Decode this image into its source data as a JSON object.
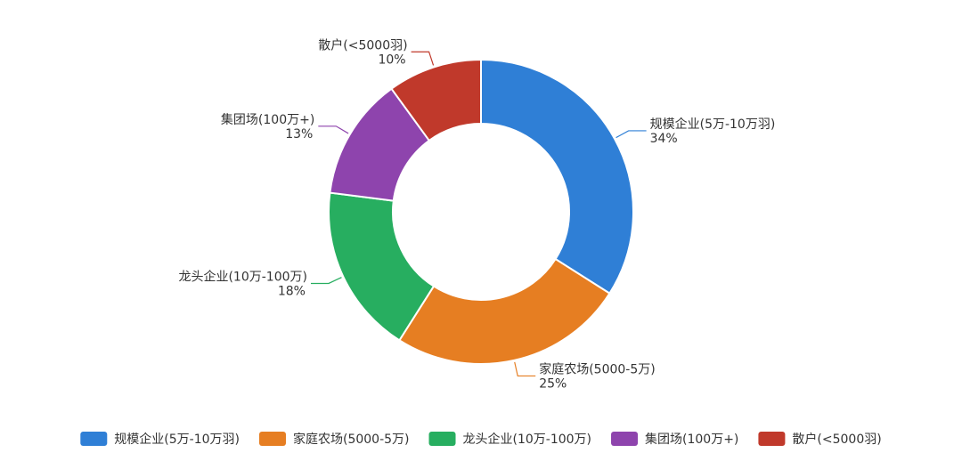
{
  "chart_data": {
    "type": "pie",
    "donut": true,
    "legend_position": "bottom",
    "slices": [
      {
        "label": "规模企业(5万-10万羽)",
        "percent": "34%",
        "value": 34,
        "color": "#2f7fd6"
      },
      {
        "label": "家庭农场(5000-5万)",
        "percent": "25%",
        "value": 25,
        "color": "#e67e22"
      },
      {
        "label": "龙头企业(10万-100万)",
        "percent": "18%",
        "value": 18,
        "color": "#27ae60"
      },
      {
        "label": "集团场(100万+)",
        "percent": "13%",
        "value": 13,
        "color": "#8e44ad"
      },
      {
        "label": "散户(<5000羽)",
        "percent": "10%",
        "value": 10,
        "color": "#c0392b"
      }
    ]
  }
}
